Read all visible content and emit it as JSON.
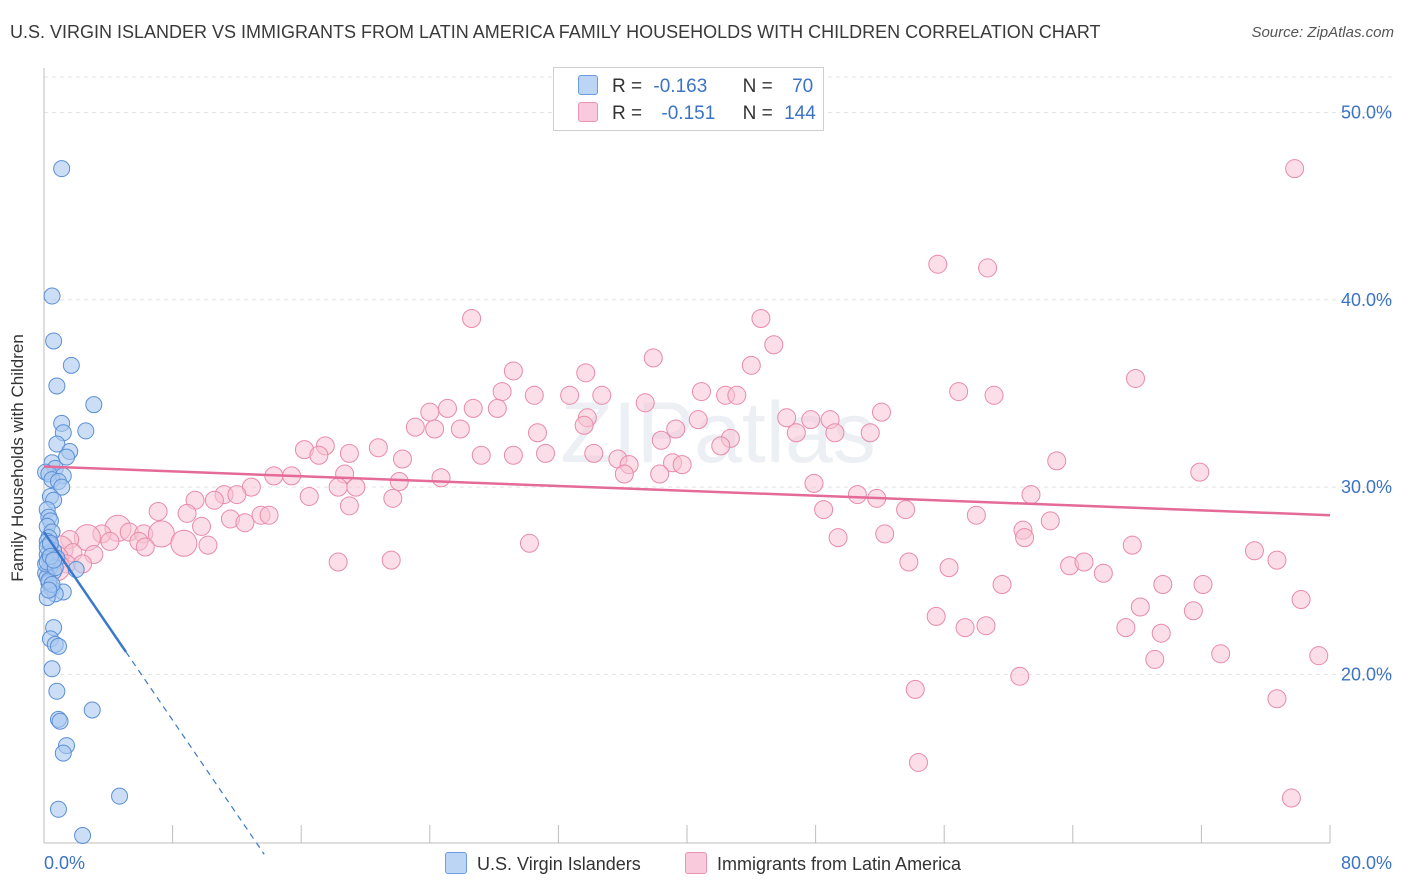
{
  "title": "U.S. VIRGIN ISLANDER VS IMMIGRANTS FROM LATIN AMERICA FAMILY HOUSEHOLDS WITH CHILDREN CORRELATION CHART",
  "source": "Source: ZipAtlas.com",
  "watermark": "ZIPatlas",
  "legend": {
    "r_label": "R =",
    "n_label": "N =",
    "series1": {
      "r": "-0.163",
      "n": "70"
    },
    "series2": {
      "r": "-0.151",
      "n": "144"
    }
  },
  "colors": {
    "series1_fill": "#a9c8f0",
    "series1_stroke": "#5b8fd6",
    "series1_line": "#3a78c9",
    "series2_fill": "#f7c3d4",
    "series2_stroke": "#e98aaa",
    "series2_line": "#e46a98",
    "tick_text": "#3c73c4"
  },
  "chart_data": {
    "type": "scatter",
    "title": "U.S. VIRGIN ISLANDER VS IMMIGRANTS FROM LATIN AMERICA FAMILY HOUSEHOLDS WITH CHILDREN CORRELATION CHART",
    "xlabel": "",
    "ylabel": "Family Households with Children",
    "xlim": [
      0,
      80
    ],
    "ylim": [
      11,
      52
    ],
    "x_tick_labels": [
      "0.0%",
      "80.0%"
    ],
    "y_ticks": [
      20,
      30,
      40,
      50
    ],
    "y_tick_labels": [
      "20.0%",
      "30.0%",
      "40.0%",
      "50.0%"
    ],
    "grid": true,
    "series": [
      {
        "name": "U.S. Virgin Islanders",
        "trend": {
          "x0": 0,
          "y0": 27.6,
          "x1": 5.1,
          "y1": 21.2,
          "dashed_to_x": 13.7,
          "dashed_to_y": 10.4
        },
        "points": [
          [
            1.1,
            47.0
          ],
          [
            0.5,
            40.2
          ],
          [
            0.6,
            37.8
          ],
          [
            1.7,
            36.5
          ],
          [
            0.8,
            35.4
          ],
          [
            3.1,
            34.4
          ],
          [
            1.1,
            33.4
          ],
          [
            2.6,
            33.0
          ],
          [
            1.2,
            32.9
          ],
          [
            0.8,
            32.3
          ],
          [
            1.6,
            31.9
          ],
          [
            1.4,
            31.6
          ],
          [
            0.5,
            31.3
          ],
          [
            0.7,
            31.0
          ],
          [
            0.1,
            30.8
          ],
          [
            0.3,
            30.7
          ],
          [
            1.2,
            30.6
          ],
          [
            0.5,
            30.4
          ],
          [
            0.9,
            30.3
          ],
          [
            1.1,
            30.0
          ],
          [
            0.4,
            29.5
          ],
          [
            0.6,
            29.3
          ],
          [
            0.2,
            28.8
          ],
          [
            0.3,
            28.4
          ],
          [
            0.4,
            28.2
          ],
          [
            0.2,
            27.9
          ],
          [
            0.5,
            27.6
          ],
          [
            0.3,
            27.3
          ],
          [
            0.2,
            27.1
          ],
          [
            0.4,
            26.9
          ],
          [
            0.6,
            26.6
          ],
          [
            0.2,
            26.4
          ],
          [
            0.3,
            26.2
          ],
          [
            0.5,
            26.0
          ],
          [
            0.4,
            25.8
          ],
          [
            0.3,
            25.6
          ],
          [
            0.6,
            25.5
          ],
          [
            0.1,
            25.4
          ],
          [
            0.2,
            25.2
          ],
          [
            0.8,
            26.2
          ],
          [
            2.0,
            25.6
          ],
          [
            0.3,
            24.9
          ],
          [
            0.5,
            24.6
          ],
          [
            1.2,
            24.4
          ],
          [
            0.7,
            24.3
          ],
          [
            0.2,
            24.1
          ],
          [
            0.6,
            22.5
          ],
          [
            0.4,
            21.9
          ],
          [
            0.7,
            21.6
          ],
          [
            0.9,
            21.5
          ],
          [
            0.5,
            20.3
          ],
          [
            0.8,
            19.1
          ],
          [
            3.0,
            18.1
          ],
          [
            0.9,
            17.6
          ],
          [
            1.0,
            17.5
          ],
          [
            1.4,
            16.2
          ],
          [
            1.2,
            15.8
          ],
          [
            4.7,
            13.5
          ],
          [
            0.9,
            12.8
          ],
          [
            2.4,
            11.4
          ],
          [
            0.2,
            26.8
          ],
          [
            0.4,
            27.0
          ],
          [
            0.1,
            25.9
          ],
          [
            0.3,
            25.0
          ],
          [
            0.5,
            24.8
          ],
          [
            0.2,
            26.0
          ],
          [
            0.7,
            25.7
          ],
          [
            0.4,
            26.3
          ],
          [
            0.3,
            24.5
          ],
          [
            0.6,
            26.1
          ]
        ]
      },
      {
        "name": "Immigrants from Latin America",
        "trend": {
          "x0": 0,
          "y0": 31.1,
          "x1": 80,
          "y1": 28.5
        },
        "points": [
          [
            77.8,
            47.0
          ],
          [
            55.6,
            41.9
          ],
          [
            58.7,
            41.7
          ],
          [
            26.6,
            39.0
          ],
          [
            44.6,
            39.0
          ],
          [
            45.4,
            37.6
          ],
          [
            37.9,
            36.9
          ],
          [
            29.2,
            36.2
          ],
          [
            33.7,
            36.1
          ],
          [
            44.0,
            36.5
          ],
          [
            67.9,
            35.8
          ],
          [
            28.5,
            35.1
          ],
          [
            30.5,
            34.9
          ],
          [
            32.7,
            34.9
          ],
          [
            34.7,
            34.9
          ],
          [
            40.9,
            35.1
          ],
          [
            42.4,
            34.9
          ],
          [
            43.1,
            34.9
          ],
          [
            56.9,
            35.1
          ],
          [
            59.1,
            34.9
          ],
          [
            25.1,
            34.2
          ],
          [
            26.7,
            34.2
          ],
          [
            28.2,
            34.2
          ],
          [
            24.0,
            34.0
          ],
          [
            37.4,
            34.5
          ],
          [
            52.1,
            34.0
          ],
          [
            46.2,
            33.7
          ],
          [
            47.7,
            33.6
          ],
          [
            48.9,
            33.6
          ],
          [
            33.8,
            33.7
          ],
          [
            23.1,
            33.2
          ],
          [
            24.3,
            33.1
          ],
          [
            25.9,
            33.1
          ],
          [
            30.7,
            32.9
          ],
          [
            33.6,
            33.3
          ],
          [
            39.3,
            33.1
          ],
          [
            40.7,
            33.6
          ],
          [
            42.7,
            32.6
          ],
          [
            46.8,
            32.9
          ],
          [
            49.2,
            32.9
          ],
          [
            51.4,
            32.9
          ],
          [
            38.4,
            32.5
          ],
          [
            42.1,
            32.2
          ],
          [
            17.5,
            32.2
          ],
          [
            20.8,
            32.1
          ],
          [
            16.2,
            32.0
          ],
          [
            19.0,
            31.8
          ],
          [
            27.2,
            31.7
          ],
          [
            29.2,
            31.7
          ],
          [
            31.2,
            31.8
          ],
          [
            34.2,
            31.8
          ],
          [
            35.7,
            31.5
          ],
          [
            22.3,
            31.5
          ],
          [
            36.4,
            31.2
          ],
          [
            39.1,
            31.3
          ],
          [
            39.7,
            31.2
          ],
          [
            17.1,
            31.7
          ],
          [
            63.0,
            31.4
          ],
          [
            71.9,
            30.8
          ],
          [
            18.7,
            30.7
          ],
          [
            14.3,
            30.6
          ],
          [
            15.4,
            30.6
          ],
          [
            24.7,
            30.5
          ],
          [
            36.1,
            30.7
          ],
          [
            38.3,
            30.7
          ],
          [
            22.1,
            30.3
          ],
          [
            47.9,
            30.2
          ],
          [
            12.9,
            30.0
          ],
          [
            18.3,
            30.0
          ],
          [
            19.4,
            30.0
          ],
          [
            11.2,
            29.6
          ],
          [
            12.0,
            29.6
          ],
          [
            16.5,
            29.5
          ],
          [
            9.4,
            29.3
          ],
          [
            10.6,
            29.3
          ],
          [
            21.7,
            29.4
          ],
          [
            50.6,
            29.6
          ],
          [
            51.8,
            29.4
          ],
          [
            61.4,
            29.6
          ],
          [
            19.0,
            29.0
          ],
          [
            48.5,
            28.8
          ],
          [
            53.6,
            28.8
          ],
          [
            7.1,
            28.7
          ],
          [
            8.9,
            28.6
          ],
          [
            13.5,
            28.5
          ],
          [
            14.0,
            28.5
          ],
          [
            11.6,
            28.3
          ],
          [
            12.5,
            28.1
          ],
          [
            9.8,
            27.9
          ],
          [
            62.6,
            28.2
          ],
          [
            4.6,
            27.8
          ],
          [
            5.3,
            27.6
          ],
          [
            3.6,
            27.5
          ],
          [
            2.7,
            27.3
          ],
          [
            1.6,
            27.2
          ],
          [
            6.2,
            27.5
          ],
          [
            7.3,
            27.5
          ],
          [
            4.1,
            27.1
          ],
          [
            5.9,
            27.1
          ],
          [
            8.7,
            27.0
          ],
          [
            6.3,
            26.8
          ],
          [
            10.2,
            26.9
          ],
          [
            1.0,
            26.7
          ],
          [
            1.8,
            26.5
          ],
          [
            3.1,
            26.4
          ],
          [
            0.7,
            26.2
          ],
          [
            1.4,
            25.9
          ],
          [
            2.4,
            25.9
          ],
          [
            0.8,
            25.7
          ],
          [
            18.3,
            26.0
          ],
          [
            21.6,
            26.1
          ],
          [
            30.2,
            27.0
          ],
          [
            49.4,
            27.3
          ],
          [
            52.3,
            27.5
          ],
          [
            60.9,
            27.7
          ],
          [
            61.0,
            27.3
          ],
          [
            67.7,
            26.9
          ],
          [
            75.3,
            26.6
          ],
          [
            76.7,
            26.1
          ],
          [
            59.6,
            24.8
          ],
          [
            56.3,
            25.7
          ],
          [
            53.8,
            26.0
          ],
          [
            63.8,
            25.8
          ],
          [
            65.9,
            25.4
          ],
          [
            69.6,
            24.8
          ],
          [
            72.1,
            24.8
          ],
          [
            78.2,
            24.0
          ],
          [
            55.5,
            23.1
          ],
          [
            57.3,
            22.5
          ],
          [
            58.6,
            22.6
          ],
          [
            68.2,
            23.6
          ],
          [
            69.5,
            22.2
          ],
          [
            71.5,
            23.4
          ],
          [
            67.3,
            22.5
          ],
          [
            73.2,
            21.1
          ],
          [
            69.1,
            20.8
          ],
          [
            79.3,
            21.0
          ],
          [
            60.7,
            19.9
          ],
          [
            54.2,
            19.2
          ],
          [
            76.7,
            18.7
          ],
          [
            54.4,
            15.3
          ],
          [
            77.6,
            13.4
          ],
          [
            64.7,
            26.0
          ],
          [
            58.0,
            28.5
          ]
        ]
      }
    ]
  },
  "bottom_legend": {
    "series1_label": "U.S. Virgin Islanders",
    "series2_label": "Immigrants from Latin America"
  }
}
